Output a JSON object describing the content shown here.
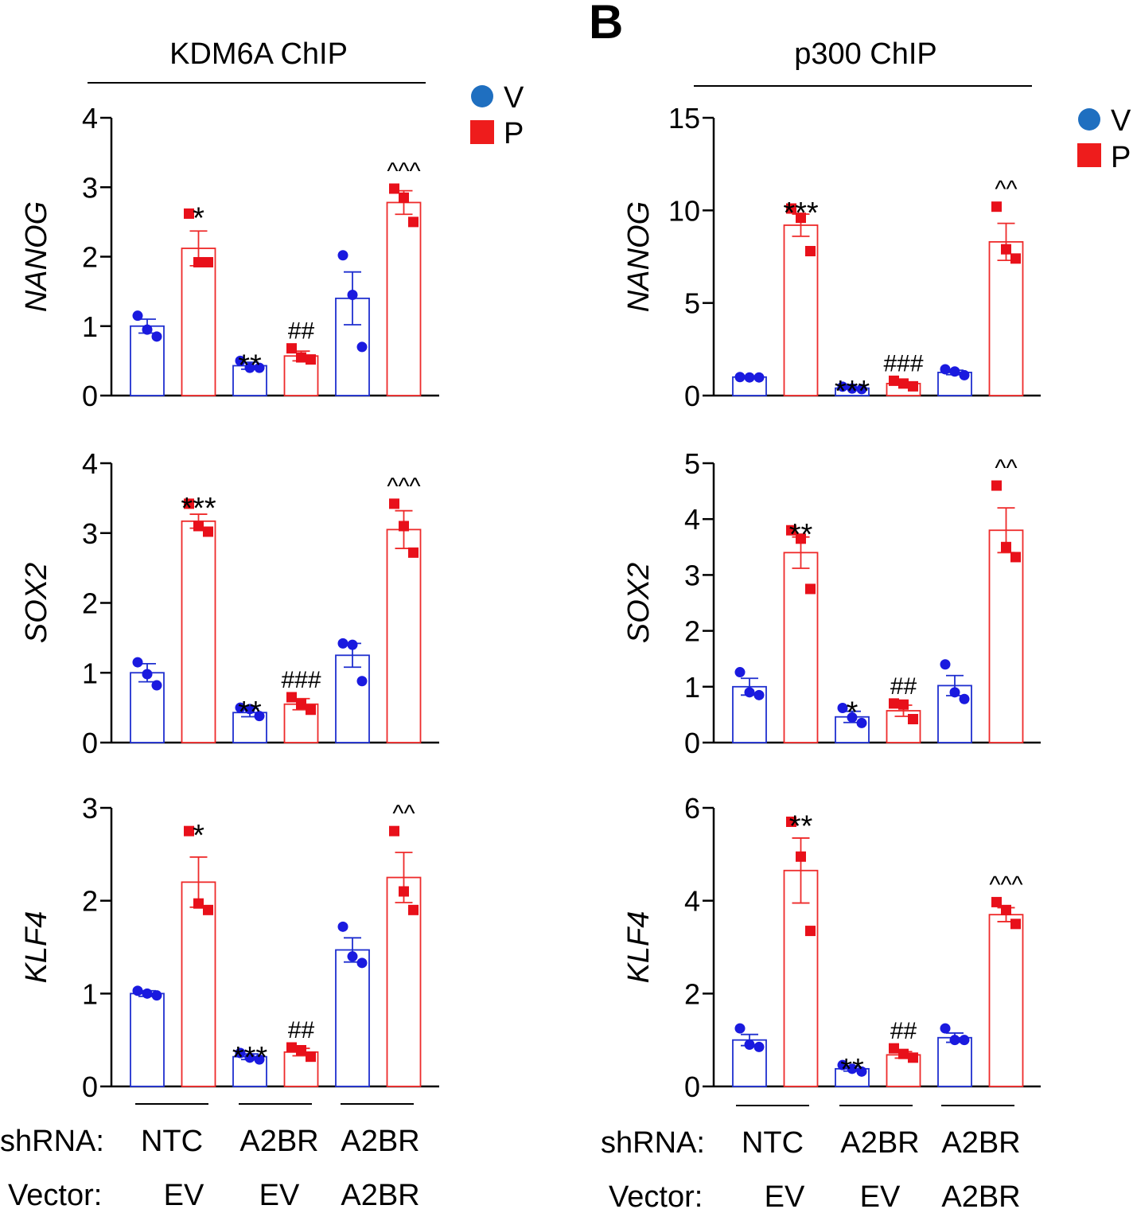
{
  "panel_letter": "B",
  "legend": [
    {
      "label": "V",
      "marker": "circle",
      "color": "#1f6fc0"
    },
    {
      "label": "P",
      "marker": "square",
      "color": "#ee1c1c"
    }
  ],
  "colors": {
    "V_bar": "#1f2fcf",
    "V_point": "#1a1adf",
    "P_bar": "#ee2a2a",
    "P_point": "#e8101a"
  },
  "rows": {
    "shrna_label": "shRNA:",
    "vector_label": "Vector:",
    "shrna": [
      "NTC",
      "A2BR",
      "A2BR"
    ],
    "vector": [
      "EV",
      "EV",
      "A2BR"
    ]
  },
  "chart_data": [
    {
      "type": "bar",
      "title": "KDM6A ChIP",
      "ylabel": "NANOG",
      "ylim": [
        0,
        4
      ],
      "yticks": [
        0,
        1,
        2,
        3,
        4
      ],
      "series_order": [
        "V",
        "P",
        "V",
        "P",
        "V",
        "P"
      ],
      "values": [
        1.0,
        2.12,
        0.43,
        0.57,
        1.4,
        2.78
      ],
      "errors": [
        0.1,
        0.25,
        0.05,
        0.07,
        0.38,
        0.17
      ],
      "points": [
        [
          1.15,
          0.95,
          0.85
        ],
        [
          2.62,
          1.92,
          1.92
        ],
        [
          0.5,
          0.4,
          0.4
        ],
        [
          0.68,
          0.55,
          0.52
        ],
        [
          2.02,
          1.45,
          0.7
        ],
        [
          2.98,
          2.85,
          2.5
        ]
      ],
      "annotations": [
        "",
        "*",
        "**",
        "##",
        "",
        "^^^"
      ]
    },
    {
      "type": "bar",
      "ylabel": "SOX2",
      "ylim": [
        0,
        4
      ],
      "yticks": [
        0,
        1,
        2,
        3,
        4
      ],
      "series_order": [
        "V",
        "P",
        "V",
        "P",
        "V",
        "P"
      ],
      "values": [
        1.0,
        3.17,
        0.43,
        0.55,
        1.25,
        3.05
      ],
      "errors": [
        0.13,
        0.1,
        0.06,
        0.08,
        0.17,
        0.27
      ],
      "points": [
        [
          1.15,
          0.98,
          0.82
        ],
        [
          3.42,
          3.1,
          3.02
        ],
        [
          0.5,
          0.48,
          0.38
        ],
        [
          0.65,
          0.55,
          0.47
        ],
        [
          1.42,
          1.4,
          0.88
        ],
        [
          3.42,
          3.1,
          2.72
        ]
      ],
      "annotations": [
        "",
        "***",
        "**",
        "###",
        "",
        "^^^"
      ]
    },
    {
      "type": "bar",
      "ylabel": "KLF4",
      "ylim": [
        0,
        3
      ],
      "yticks": [
        0,
        1,
        2,
        3
      ],
      "series_order": [
        "V",
        "P",
        "V",
        "P",
        "V",
        "P"
      ],
      "values": [
        1.0,
        2.2,
        0.32,
        0.37,
        1.47,
        2.25
      ],
      "errors": [
        0.03,
        0.27,
        0.03,
        0.04,
        0.13,
        0.27
      ],
      "points": [
        [
          1.03,
          1.0,
          0.98
        ],
        [
          2.75,
          1.97,
          1.9
        ],
        [
          0.36,
          0.31,
          0.29
        ],
        [
          0.42,
          0.39,
          0.32
        ],
        [
          1.72,
          1.4,
          1.33
        ],
        [
          2.75,
          2.1,
          1.9
        ]
      ],
      "annotations": [
        "",
        "*",
        "***",
        "##",
        "",
        "^^"
      ]
    },
    {
      "type": "bar",
      "title": "p300 ChIP",
      "ylabel": "NANOG",
      "ylim": [
        0,
        15
      ],
      "yticks": [
        0,
        5,
        10,
        15
      ],
      "series_order": [
        "V",
        "P",
        "V",
        "P",
        "V",
        "P"
      ],
      "values": [
        1.0,
        9.2,
        0.4,
        0.65,
        1.25,
        8.3
      ],
      "errors": [
        0.05,
        0.6,
        0.05,
        0.08,
        0.12,
        1.0
      ],
      "points": [
        [
          1.0,
          0.98,
          0.98
        ],
        [
          10.1,
          9.6,
          7.8
        ],
        [
          0.48,
          0.38,
          0.35
        ],
        [
          0.8,
          0.65,
          0.5
        ],
        [
          1.42,
          1.3,
          1.1
        ],
        [
          10.2,
          7.9,
          7.4
        ]
      ],
      "annotations": [
        "",
        "***",
        "***",
        "###",
        "",
        "^^"
      ]
    },
    {
      "type": "bar",
      "ylabel": "SOX2",
      "ylim": [
        0,
        5
      ],
      "yticks": [
        0,
        1,
        2,
        3,
        4,
        5
      ],
      "series_order": [
        "V",
        "P",
        "V",
        "P",
        "V",
        "P"
      ],
      "values": [
        1.0,
        3.4,
        0.46,
        0.57,
        1.02,
        3.8
      ],
      "errors": [
        0.15,
        0.28,
        0.1,
        0.1,
        0.18,
        0.4
      ],
      "points": [
        [
          1.26,
          0.9,
          0.85
        ],
        [
          3.8,
          3.65,
          2.75
        ],
        [
          0.62,
          0.45,
          0.35
        ],
        [
          0.7,
          0.68,
          0.42
        ],
        [
          1.4,
          0.9,
          0.78
        ],
        [
          4.6,
          3.5,
          3.32
        ]
      ],
      "annotations": [
        "",
        "**",
        "*",
        "##",
        "",
        "^^"
      ]
    },
    {
      "type": "bar",
      "ylabel": "KLF4",
      "ylim": [
        0,
        6
      ],
      "yticks": [
        0,
        2,
        4,
        6
      ],
      "series_order": [
        "V",
        "P",
        "V",
        "P",
        "V",
        "P"
      ],
      "values": [
        1.0,
        4.65,
        0.38,
        0.68,
        1.05,
        3.7
      ],
      "errors": [
        0.12,
        0.7,
        0.05,
        0.07,
        0.1,
        0.15
      ],
      "points": [
        [
          1.25,
          0.9,
          0.85
        ],
        [
          5.7,
          4.95,
          3.35
        ],
        [
          0.46,
          0.38,
          0.32
        ],
        [
          0.82,
          0.7,
          0.62
        ],
        [
          1.25,
          1.0,
          1.0
        ],
        [
          3.97,
          3.8,
          3.5
        ]
      ],
      "annotations": [
        "",
        "**",
        "**",
        "##",
        "",
        "^^^"
      ]
    }
  ]
}
